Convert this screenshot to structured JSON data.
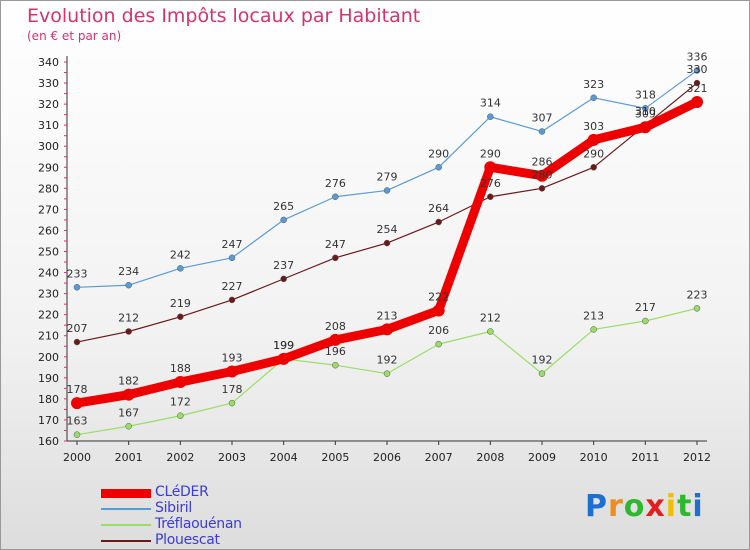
{
  "chart_data": {
    "type": "line",
    "title": "Evolution des Impôts locaux par Habitant",
    "subtitle": "(en € et par an)",
    "xlabel": "",
    "ylabel": "",
    "categories": [
      "2000",
      "2001",
      "2002",
      "2003",
      "2004",
      "2005",
      "2006",
      "2007",
      "2008",
      "2009",
      "2010",
      "2011",
      "2012"
    ],
    "ylim": [
      160,
      340
    ],
    "yticks": [
      160,
      170,
      180,
      190,
      200,
      210,
      220,
      230,
      240,
      250,
      260,
      270,
      280,
      290,
      300,
      310,
      320,
      330,
      340
    ],
    "grid": false,
    "legend_position": "bottom-left",
    "series": [
      {
        "name": "Sibiril",
        "color": "#5a9bd4",
        "values": [
          233,
          234,
          242,
          247,
          265,
          276,
          279,
          290,
          314,
          307,
          323,
          318,
          336
        ],
        "value_labels": [
          "233",
          "234",
          "242",
          "247",
          "265",
          "276",
          "279",
          "290",
          "314",
          "307",
          "323",
          "318",
          "336"
        ]
      },
      {
        "name": "Plouescat",
        "color": "#6b1a1a",
        "values": [
          207,
          212,
          219,
          227,
          237,
          247,
          254,
          264,
          276,
          280,
          290,
          310,
          330
        ],
        "value_labels": [
          "207",
          "212",
          "219",
          "227",
          "237",
          "247",
          "254",
          "264",
          "276",
          "280",
          "290",
          "310",
          "330"
        ]
      },
      {
        "name": "Tréflaouénan",
        "color": "#99dd66",
        "values": [
          163,
          167,
          172,
          178,
          199,
          196,
          192,
          206,
          212,
          192,
          213,
          217,
          223
        ],
        "value_labels": [
          "163",
          "167",
          "172",
          "178",
          "199",
          "196",
          "192",
          "206",
          "212",
          "192",
          "213",
          "217",
          "223"
        ]
      },
      {
        "name": "CLéDER",
        "color": "#ee0000",
        "values": [
          178,
          182,
          188,
          193,
          199,
          208,
          213,
          222,
          290,
          286,
          303,
          309,
          321
        ],
        "value_labels": [
          "178",
          "182",
          "188",
          "193",
          "199",
          "208",
          "213",
          "222",
          "290",
          "286",
          "303",
          "309",
          "321"
        ]
      }
    ],
    "legend": [
      "CLéDER",
      "Sibiril",
      "Tréflaouénan",
      "Plouescat"
    ]
  },
  "brand": {
    "letters": [
      "P",
      "r",
      "o",
      "x",
      "i",
      "t",
      "i"
    ],
    "colors": [
      "#1f6fd1",
      "#f08c1a",
      "#2db82d",
      "#e02020",
      "#f0c000",
      "#2db82d",
      "#1f6fd1"
    ]
  }
}
